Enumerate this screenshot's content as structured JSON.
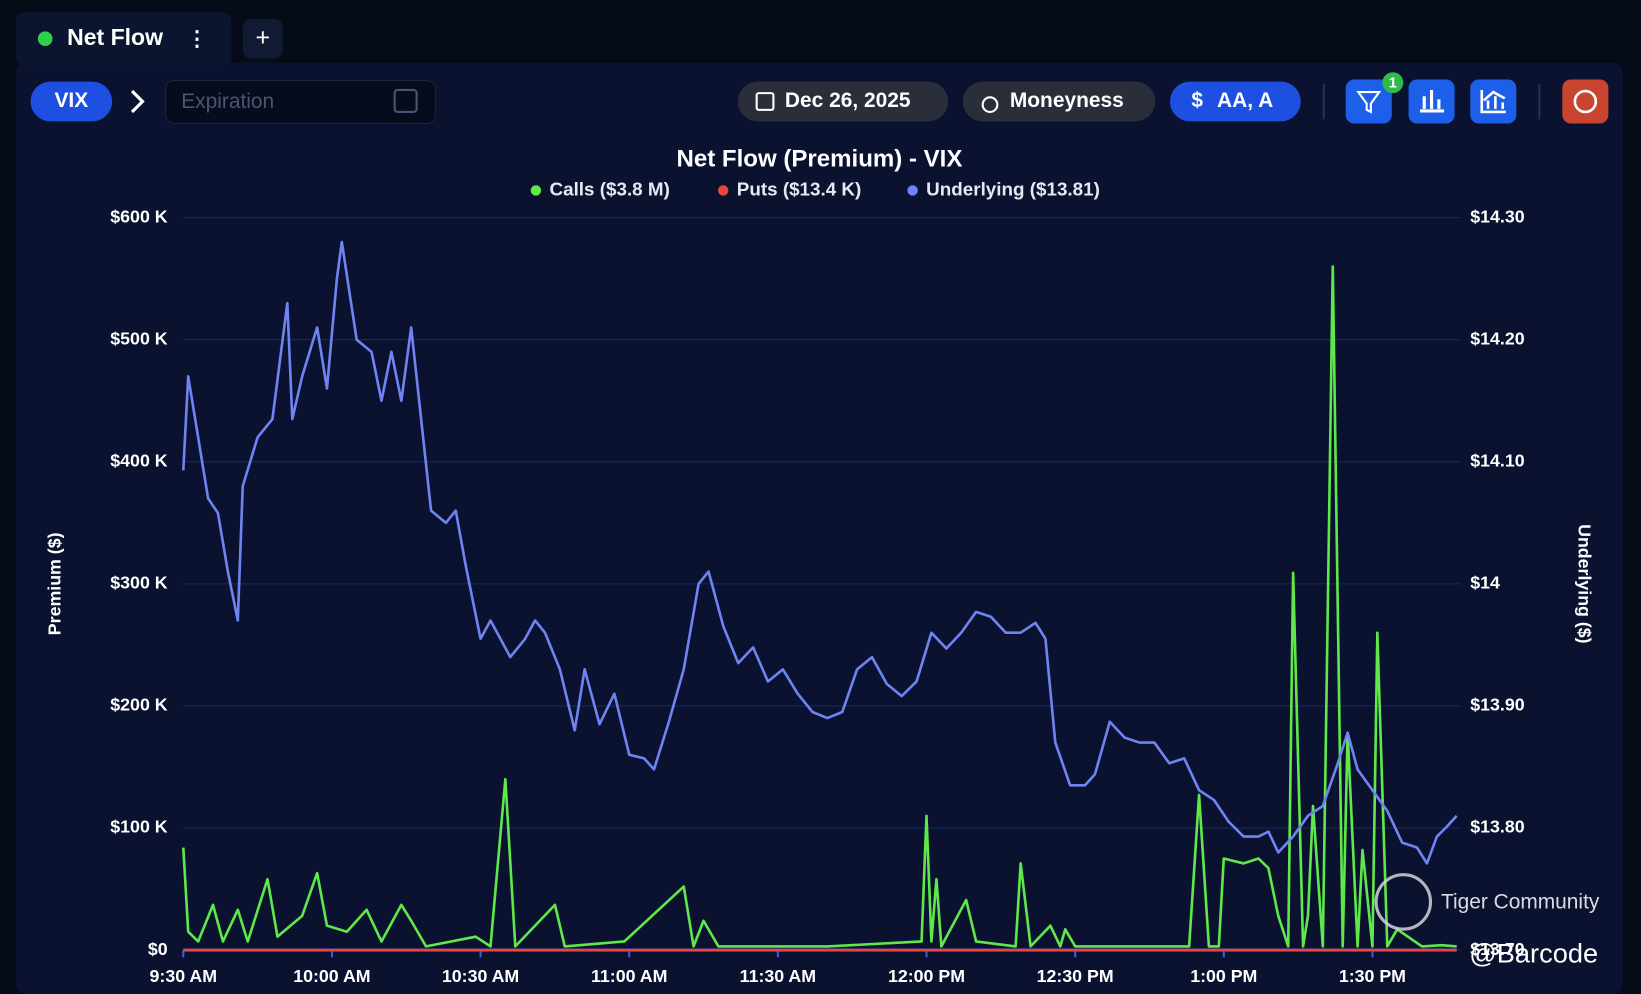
{
  "ui": {
    "tab": "Net Flow",
    "ticker": "VIX",
    "expiration": "Expiration",
    "date": "Dec 26, 2025",
    "moneyness": "Moneyness",
    "size_filter": "AA, A",
    "filter_count": "1",
    "watermark": "Tiger Community",
    "credit": "@Barcode"
  },
  "chart_data": {
    "type": "line",
    "title": "Net Flow (Premium) - VIX",
    "y_label": "Premium ($)",
    "y2_label": "Underlying ($)",
    "xlim": [
      0,
      257
    ],
    "xticks": [
      {
        "value": 0,
        "label": "9:30 AM"
      },
      {
        "value": 30,
        "label": "10:00 AM"
      },
      {
        "value": 60,
        "label": "10:30 AM"
      },
      {
        "value": 90,
        "label": "11:00 AM"
      },
      {
        "value": 120,
        "label": "11:30 AM"
      },
      {
        "value": 150,
        "label": "12:00 PM"
      },
      {
        "value": 180,
        "label": "12:30 PM"
      },
      {
        "value": 210,
        "label": "1:00 PM"
      },
      {
        "value": 240,
        "label": "1:30 PM"
      }
    ],
    "ylim": [
      0,
      600000
    ],
    "yticks": [
      {
        "value": 0,
        "label": "$0"
      },
      {
        "value": 100000,
        "label": "$100 K"
      },
      {
        "value": 200000,
        "label": "$200 K"
      },
      {
        "value": 300000,
        "label": "$300 K"
      },
      {
        "value": 400000,
        "label": "$400 K"
      },
      {
        "value": 500000,
        "label": "$500 K"
      },
      {
        "value": 600000,
        "label": "$600 K"
      }
    ],
    "y2lim": [
      13.7,
      14.3
    ],
    "y2ticks": [
      {
        "value": 13.7,
        "label": "$13.70"
      },
      {
        "value": 13.8,
        "label": "$13.80"
      },
      {
        "value": 13.9,
        "label": "$13.90"
      },
      {
        "value": 14,
        "label": "$14"
      },
      {
        "value": 14.1,
        "label": "$14.10"
      },
      {
        "value": 14.2,
        "label": "$14.20"
      },
      {
        "value": 14.3,
        "label": "$14.30"
      }
    ],
    "grid": true,
    "series": [
      {
        "name": "Calls ($3.8 M)",
        "color": "#5ee84a",
        "x": [
          0,
          1,
          3,
          6,
          8,
          11,
          13,
          17,
          19,
          24,
          27,
          29,
          33,
          37,
          40,
          44,
          46,
          49,
          59,
          62,
          65,
          67,
          75,
          77,
          89,
          101,
          103,
          105,
          108,
          130,
          149,
          150,
          151,
          152,
          153,
          158,
          160,
          168,
          169,
          171,
          175,
          177,
          178,
          180,
          203,
          205,
          207,
          209,
          210,
          214,
          217,
          219,
          221,
          223,
          224,
          226,
          227,
          228,
          230,
          232,
          234,
          235,
          237,
          238,
          240,
          241,
          243,
          245,
          250,
          254,
          257
        ],
        "values": [
          84000,
          15000,
          7000,
          37000,
          7000,
          33000,
          7000,
          58000,
          11000,
          28000,
          63000,
          20000,
          15000,
          33000,
          7000,
          37000,
          24000,
          3000,
          11000,
          3000,
          140000,
          3000,
          37000,
          3000,
          7000,
          52000,
          3000,
          24000,
          3000,
          3000,
          7000,
          110000,
          7000,
          58000,
          3000,
          41000,
          7000,
          3000,
          71000,
          3000,
          20000,
          3000,
          17000,
          3000,
          3000,
          127000,
          3000,
          3000,
          75000,
          71000,
          75000,
          67000,
          28000,
          3000,
          309000,
          3000,
          28000,
          118000,
          3000,
          560000,
          3000,
          178000,
          3000,
          82000,
          3000,
          260000,
          3000,
          17000,
          3000,
          4000,
          3000
        ]
      },
      {
        "name": "Puts ($13.4 K)",
        "color": "#e8453c",
        "x": [
          0,
          257
        ],
        "values": [
          0,
          0
        ]
      },
      {
        "name": "Underlying ($13.81)",
        "color": "#6f84f2",
        "axis": "y2",
        "x": [
          0,
          1,
          3,
          5,
          7,
          9,
          11,
          12,
          15,
          18,
          21,
          22,
          24,
          27,
          29,
          31,
          32,
          35,
          38,
          40,
          42,
          44,
          46,
          48,
          50,
          53,
          55,
          57,
          60,
          62,
          64,
          66,
          69,
          71,
          73,
          76,
          79,
          81,
          84,
          87,
          90,
          93,
          95,
          98,
          101,
          104,
          106,
          109,
          112,
          115,
          118,
          121,
          124,
          127,
          130,
          133,
          136,
          139,
          142,
          145,
          148,
          151,
          154,
          157,
          160,
          163,
          166,
          169,
          172,
          174,
          176,
          179,
          182,
          184,
          187,
          190,
          193,
          196,
          199,
          202,
          205,
          208,
          211,
          214,
          217,
          219,
          221,
          224,
          227,
          230,
          233,
          235,
          237,
          240,
          243,
          246,
          249,
          251,
          253,
          255,
          257
        ],
        "values": [
          14.093,
          14.17,
          14.12,
          14.07,
          14.058,
          14.01,
          13.97,
          14.08,
          14.12,
          14.135,
          14.23,
          14.135,
          14.17,
          14.21,
          14.16,
          14.25,
          14.28,
          14.2,
          14.19,
          14.15,
          14.19,
          14.15,
          14.21,
          14.135,
          14.06,
          14.05,
          14.06,
          14.015,
          13.955,
          13.97,
          13.955,
          13.94,
          13.955,
          13.97,
          13.96,
          13.93,
          13.88,
          13.93,
          13.885,
          13.91,
          13.86,
          13.857,
          13.848,
          13.887,
          13.93,
          14,
          14.01,
          13.965,
          13.935,
          13.948,
          13.92,
          13.93,
          13.91,
          13.895,
          13.89,
          13.895,
          13.93,
          13.94,
          13.918,
          13.908,
          13.92,
          13.96,
          13.947,
          13.96,
          13.977,
          13.973,
          13.96,
          13.96,
          13.968,
          13.955,
          13.87,
          13.835,
          13.835,
          13.844,
          13.887,
          13.874,
          13.87,
          13.87,
          13.853,
          13.857,
          13.831,
          13.823,
          13.805,
          13.793,
          13.793,
          13.797,
          13.78,
          13.793,
          13.81,
          13.818,
          13.853,
          13.878,
          13.848,
          13.831,
          13.814,
          13.788,
          13.784,
          13.771,
          13.793,
          13.801,
          13.81
        ]
      }
    ]
  }
}
